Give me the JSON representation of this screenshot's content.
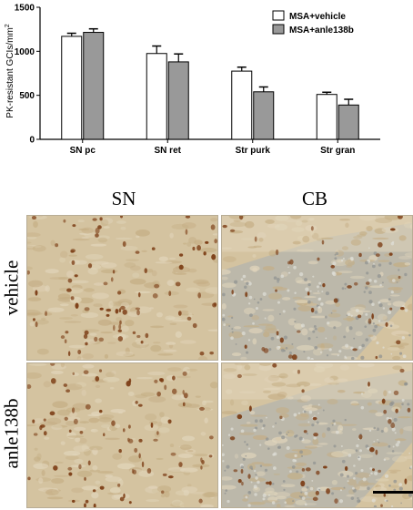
{
  "chart_data": {
    "type": "bar",
    "ylabel": "PK-resistant GCIs/mm²",
    "ylabel_base": "PK-resistant GCIs/mm",
    "ylabel_sup": "2",
    "ylim": [
      0,
      1500
    ],
    "yticks": [
      "0",
      "500",
      "1000",
      "1500"
    ],
    "ytick_values": [
      0,
      500,
      1000,
      1500
    ],
    "categories": [
      "SN pc",
      "SN ret",
      "Str purk",
      "Str gran"
    ],
    "series": [
      {
        "name": "MSA+vehicle",
        "color": "#ffffff",
        "values": [
          1170,
          975,
          775,
          510
        ],
        "errors": [
          35,
          85,
          45,
          25
        ]
      },
      {
        "name": "MSA+anle138b",
        "color": "#999999",
        "values": [
          1215,
          880,
          540,
          390
        ],
        "errors": [
          40,
          90,
          55,
          65
        ]
      }
    ],
    "legend": "top-right",
    "grid": false
  },
  "figure": {
    "columns": [
      "SN",
      "CB"
    ],
    "rows": [
      "vehicle",
      "anle138b"
    ]
  },
  "panel_colors": {
    "tissue": "#d4c3a0",
    "tissue_light": "#e2d6bc",
    "granular": "#b7b6ac",
    "nucleus": "#7a3a12"
  }
}
